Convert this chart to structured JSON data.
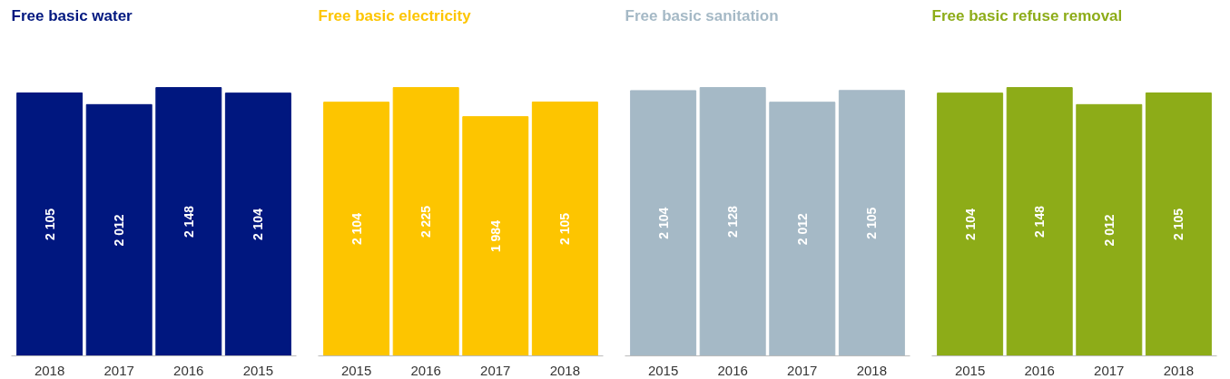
{
  "chart_data": [
    {
      "type": "bar",
      "title": "Free basic water",
      "categories": [
        "2018",
        "2017",
        "2016",
        "2015"
      ],
      "values": [
        2105,
        2012,
        2148,
        2104
      ],
      "color": "#00177f",
      "value_labels": [
        "2 105",
        "2 012",
        "2 148",
        "2 104"
      ]
    },
    {
      "type": "bar",
      "title": "Free basic electricity",
      "categories": [
        "2015",
        "2016",
        "2017",
        "2018"
      ],
      "values": [
        2104,
        2225,
        1984,
        2105
      ],
      "color": "#fdc500",
      "value_labels": [
        "2 104",
        "2 225",
        "1 984",
        "2 105"
      ]
    },
    {
      "type": "bar",
      "title": "Free basic sanitation",
      "categories": [
        "2015",
        "2016",
        "2017",
        "2018"
      ],
      "values": [
        2104,
        2128,
        2012,
        2105
      ],
      "color": "#a5b9c6",
      "value_labels": [
        "2 104",
        "2 128",
        "2 012",
        "2 105"
      ]
    },
    {
      "type": "bar",
      "title": "Free basic refuse removal",
      "categories": [
        "2015",
        "2016",
        "2017",
        "2018"
      ],
      "values": [
        2104,
        2148,
        2012,
        2105
      ],
      "color": "#8dac18",
      "value_labels": [
        "2 104",
        "2 148",
        "2 012",
        "2 105"
      ]
    }
  ]
}
